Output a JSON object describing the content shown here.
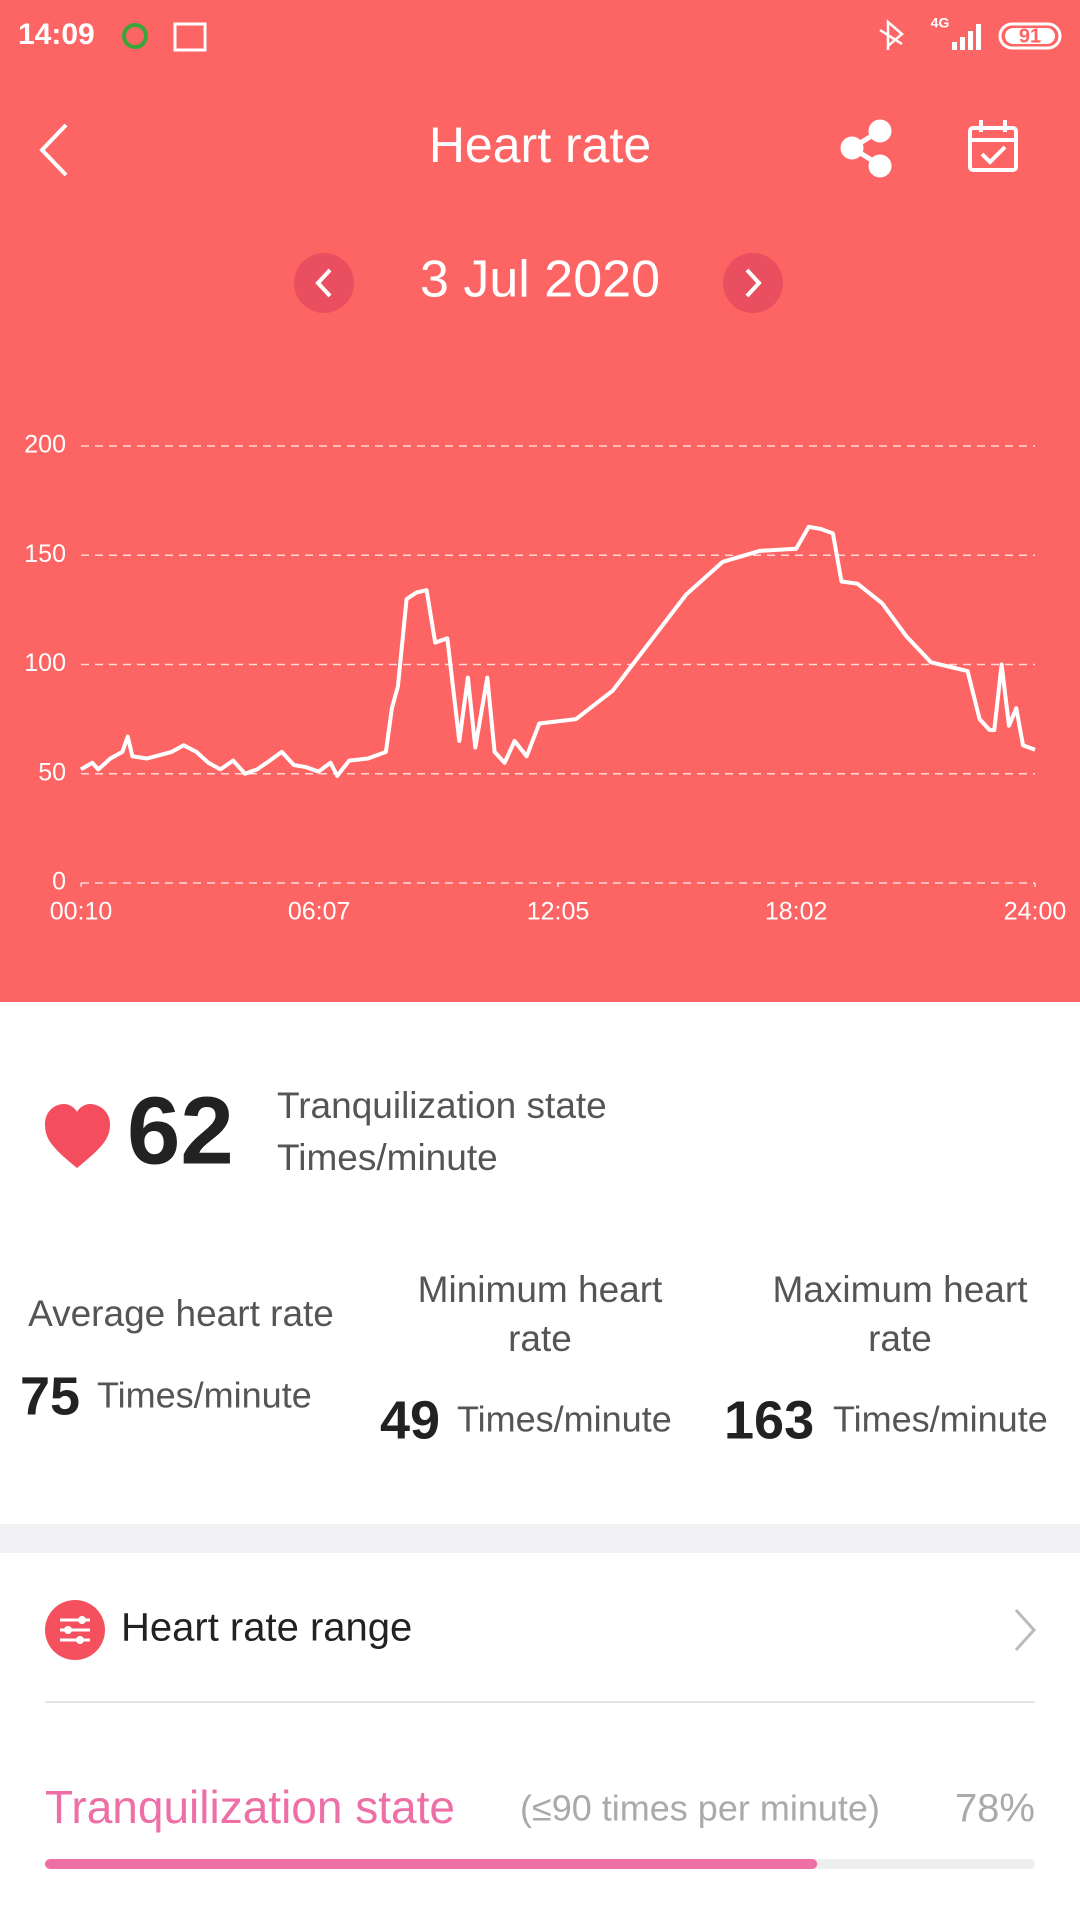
{
  "status_bar": {
    "time": "14:09",
    "network": "4G",
    "battery": "91"
  },
  "header": {
    "title": "Heart rate",
    "date": "3 Jul 2020"
  },
  "chart_data": {
    "type": "line",
    "x": [
      10,
      27,
      36,
      54,
      72,
      80,
      87,
      109,
      146,
      164,
      183,
      201,
      219,
      238,
      256,
      274,
      293,
      311,
      329,
      348,
      366,
      384,
      394,
      412,
      440,
      467,
      476,
      485,
      498,
      513,
      528,
      541,
      559,
      577,
      590,
      601,
      619,
      630,
      645,
      660,
      678,
      697,
      752,
      807,
      862,
      917,
      972,
      1027,
      1082,
      1101,
      1119,
      1137,
      1150,
      1174,
      1211,
      1247,
      1284,
      1339,
      1357,
      1372,
      1379,
      1390,
      1401,
      1412,
      1422,
      1440
    ],
    "series": [
      {
        "color": "#ffffff",
        "values": [
          52,
          55,
          52,
          57,
          60,
          67,
          58,
          57,
          60,
          63,
          60,
          55,
          52,
          56,
          50,
          52,
          56,
          60,
          54,
          53,
          51,
          55,
          49,
          56,
          57,
          60,
          80,
          90,
          130,
          133,
          134,
          110,
          112,
          65,
          94,
          62,
          94,
          60,
          55,
          65,
          58,
          73,
          75,
          88,
          110,
          132,
          147,
          152,
          153,
          163,
          162,
          160,
          138,
          137,
          128,
          113,
          101,
          97,
          75,
          70,
          70,
          100,
          72,
          80,
          63,
          61
        ]
      }
    ],
    "xlim": [
      10,
      1440
    ],
    "xticks": [
      {
        "value": 10,
        "label": "00:10"
      },
      {
        "value": 367,
        "label": "06:07"
      },
      {
        "value": 725,
        "label": "12:05"
      },
      {
        "value": 1082,
        "label": "18:02"
      },
      {
        "value": 1440,
        "label": "24:00"
      }
    ],
    "ylim": [
      0,
      200
    ],
    "yticks": [
      0,
      50,
      100,
      150,
      200
    ],
    "grid": true
  },
  "current": {
    "value": 62,
    "state": "Tranquilization state",
    "unit": "Times/minute"
  },
  "stats": [
    {
      "label": [
        "Average heart rate"
      ],
      "value": 75,
      "unit": "Times/minute"
    },
    {
      "label": [
        "Minimum heart",
        "rate"
      ],
      "value": 49,
      "unit": "Times/minute"
    },
    {
      "label": [
        "Maximum heart",
        "rate"
      ],
      "value": 163,
      "unit": "Times/minute"
    }
  ],
  "range_link": {
    "title": "Heart rate range"
  },
  "zone": {
    "name": "Tranquilization state",
    "condition": "(≤90 times per minute)",
    "percent": {
      "value": 78,
      "label": "78%"
    }
  }
}
